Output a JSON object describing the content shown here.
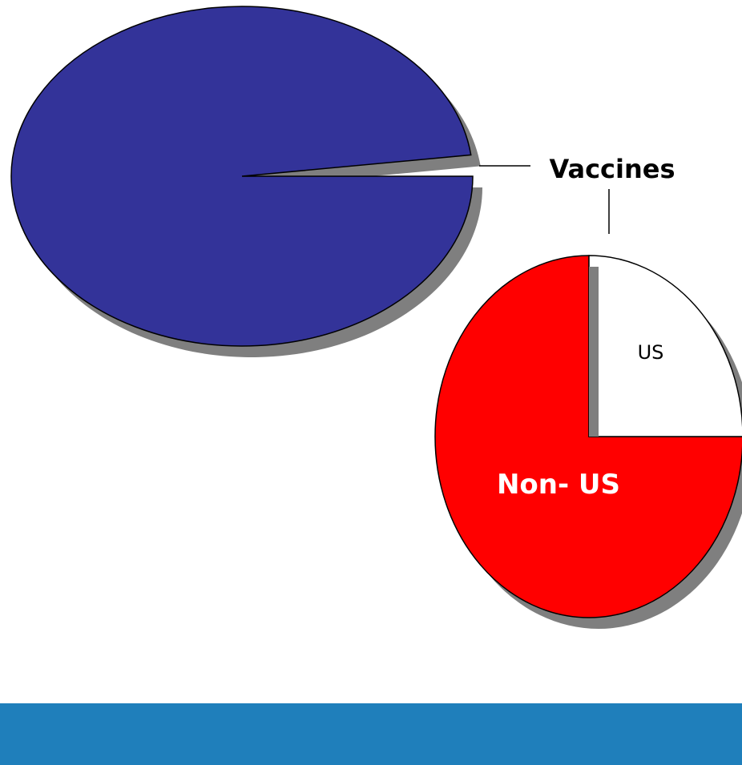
{
  "chart_data": [
    {
      "type": "pie",
      "slices": [
        {
          "label": "",
          "value": 98.0,
          "color": "#333399"
        },
        {
          "label": "Vaccines",
          "value": 2.0,
          "color": "#333399",
          "exploded": true
        }
      ]
    },
    {
      "type": "pie",
      "slices": [
        {
          "label": "US",
          "value": 25,
          "color": "#ffffff",
          "label_color": "#000000"
        },
        {
          "label": "Non- US",
          "value": 75,
          "color": "#ff0000",
          "label_color": "#ffffff"
        }
      ]
    }
  ],
  "colors": {
    "shadow": "#7f7f7f",
    "outline": "#000000",
    "footer": "#1f7fbb"
  }
}
